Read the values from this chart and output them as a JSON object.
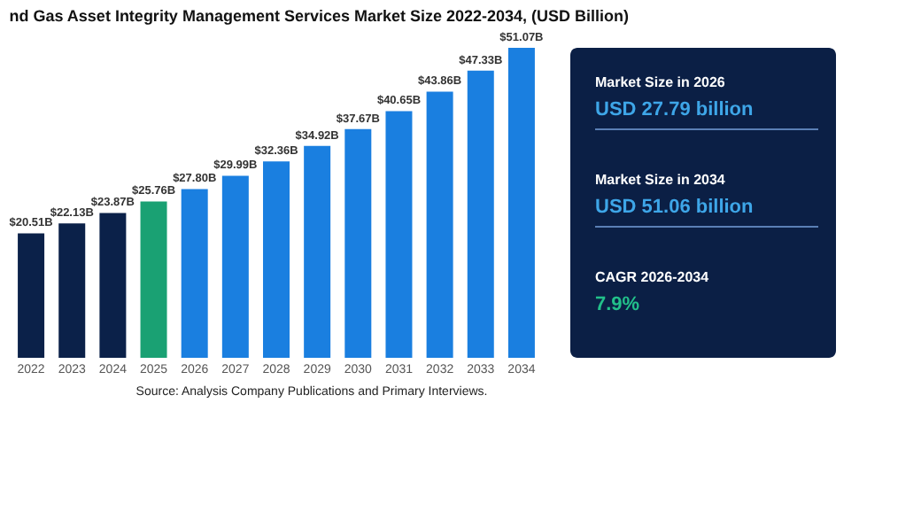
{
  "chart_data": [
    {
      "type": "bar",
      "title": "nd Gas Asset Integrity Management Services Market Size 2022-2034, (USD Billion)",
      "categories": [
        "2022",
        "2023",
        "2024",
        "2025",
        "2026",
        "2027",
        "2028",
        "2029",
        "2030",
        "2031",
        "2032",
        "2033",
        "2034"
      ],
      "values": [
        20.51,
        22.13,
        23.87,
        25.76,
        27.8,
        29.99,
        32.36,
        34.92,
        37.67,
        40.65,
        43.86,
        47.33,
        51.07
      ],
      "value_labels": [
        "$20.51B",
        "$22.13B",
        "$23.87B",
        "$25.76B",
        "$27.80B",
        "$29.99B",
        "$32.36B",
        "$34.92B",
        "$37.67B",
        "$40.65B",
        "$43.86B",
        "$47.33B",
        "$51.07B"
      ],
      "colors": [
        "#0b2149",
        "#0b2149",
        "#0b2149",
        "#1aa173",
        "#1a7fe0",
        "#1a7fe0",
        "#1a7fe0",
        "#1a7fe0",
        "#1a7fe0",
        "#1a7fe0",
        "#1a7fe0",
        "#1a7fe0",
        "#1a7fe0"
      ],
      "annotations": [
        "Source: Analysis Company Publications and Primary Interviews."
      ]
    },
    {
      "type": "other",
      "annotations": [
        "Market Size in 2026",
        "USD 27.79 billion",
        "Market Size in 2034",
        "USD 51.06 billion",
        "CAGR 2026-2034",
        "7.9%"
      ]
    }
  ]
}
